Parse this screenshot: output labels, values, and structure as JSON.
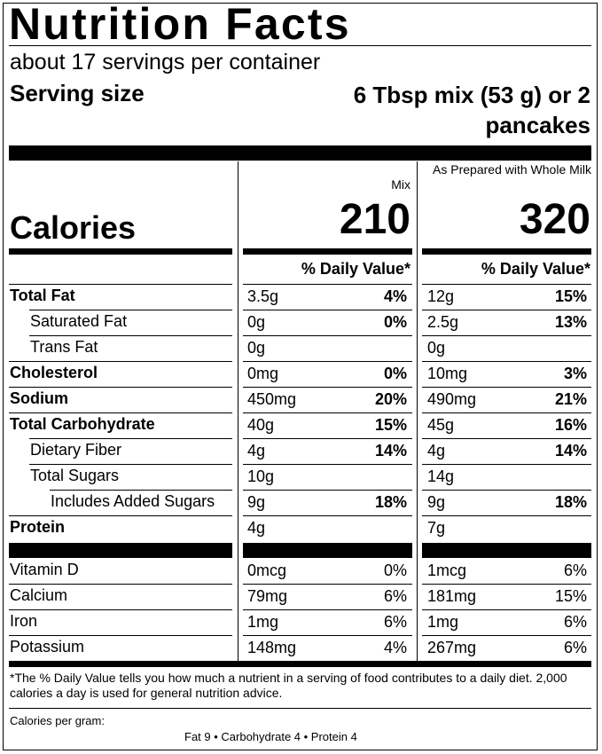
{
  "title": "Nutrition Facts",
  "servings_per_container": "about 17 servings per container",
  "serving_size": {
    "label": "Serving size",
    "value_line1": "6 Tbsp mix (53 g) or 2",
    "value_line2": "pancakes"
  },
  "columns": {
    "mix": "Mix",
    "prepared": "As Prepared with Whole Milk"
  },
  "calories": {
    "label": "Calories",
    "mix": "210",
    "prepared": "320"
  },
  "daily_value_header": "% Daily Value*",
  "nutrients": [
    {
      "name": "Total Fat",
      "bold": true,
      "indent": 0,
      "mix_amt": "3.5g",
      "mix_pct": "4%",
      "prep_amt": "12g",
      "prep_pct": "15%"
    },
    {
      "name": "Saturated Fat",
      "bold": false,
      "indent": 1,
      "mix_amt": "0g",
      "mix_pct": "0%",
      "prep_amt": "2.5g",
      "prep_pct": "13%"
    },
    {
      "name": "Trans Fat",
      "bold": false,
      "indent": 1,
      "mix_amt": "0g",
      "mix_pct": "",
      "prep_amt": "0g",
      "prep_pct": ""
    },
    {
      "name": "Cholesterol",
      "bold": true,
      "indent": 0,
      "mix_amt": "0mg",
      "mix_pct": "0%",
      "prep_amt": "10mg",
      "prep_pct": "3%"
    },
    {
      "name": "Sodium",
      "bold": true,
      "indent": 0,
      "mix_amt": "450mg",
      "mix_pct": "20%",
      "prep_amt": "490mg",
      "prep_pct": "21%"
    },
    {
      "name": "Total Carbohydrate",
      "bold": true,
      "indent": 0,
      "mix_amt": "40g",
      "mix_pct": "15%",
      "prep_amt": "45g",
      "prep_pct": "16%"
    },
    {
      "name": "Dietary Fiber",
      "bold": false,
      "indent": 1,
      "mix_amt": "4g",
      "mix_pct": "14%",
      "prep_amt": "4g",
      "prep_pct": "14%"
    },
    {
      "name": "Total Sugars",
      "bold": false,
      "indent": 1,
      "mix_amt": "10g",
      "mix_pct": "",
      "prep_amt": "14g",
      "prep_pct": ""
    },
    {
      "name": "Includes Added Sugars",
      "bold": false,
      "indent": 2,
      "mix_amt": "9g",
      "mix_pct": "18%",
      "prep_amt": "9g",
      "prep_pct": "18%"
    },
    {
      "name": "Protein",
      "bold": true,
      "indent": 0,
      "mix_amt": "4g",
      "mix_pct": "",
      "prep_amt": "7g",
      "prep_pct": ""
    }
  ],
  "vitamins": [
    {
      "name": "Vitamin D",
      "mix_amt": "0mcg",
      "mix_pct": "0%",
      "prep_amt": "1mcg",
      "prep_pct": "6%"
    },
    {
      "name": "Calcium",
      "mix_amt": "79mg",
      "mix_pct": "6%",
      "prep_amt": "181mg",
      "prep_pct": "15%"
    },
    {
      "name": "Iron",
      "mix_amt": "1mg",
      "mix_pct": "6%",
      "prep_amt": "1mg",
      "prep_pct": "6%"
    },
    {
      "name": "Potassium",
      "mix_amt": "148mg",
      "mix_pct": "4%",
      "prep_amt": "267mg",
      "prep_pct": "6%"
    }
  ],
  "footnote": "*The % Daily Value tells you how much a nutrient in a serving of food contributes to a daily diet. 2,000 calories a day is used for general nutrition advice.",
  "calories_per_gram": {
    "label": "Calories per gram:",
    "values": "Fat 9   •   Carbohydrate 4   •   Protein 4"
  }
}
